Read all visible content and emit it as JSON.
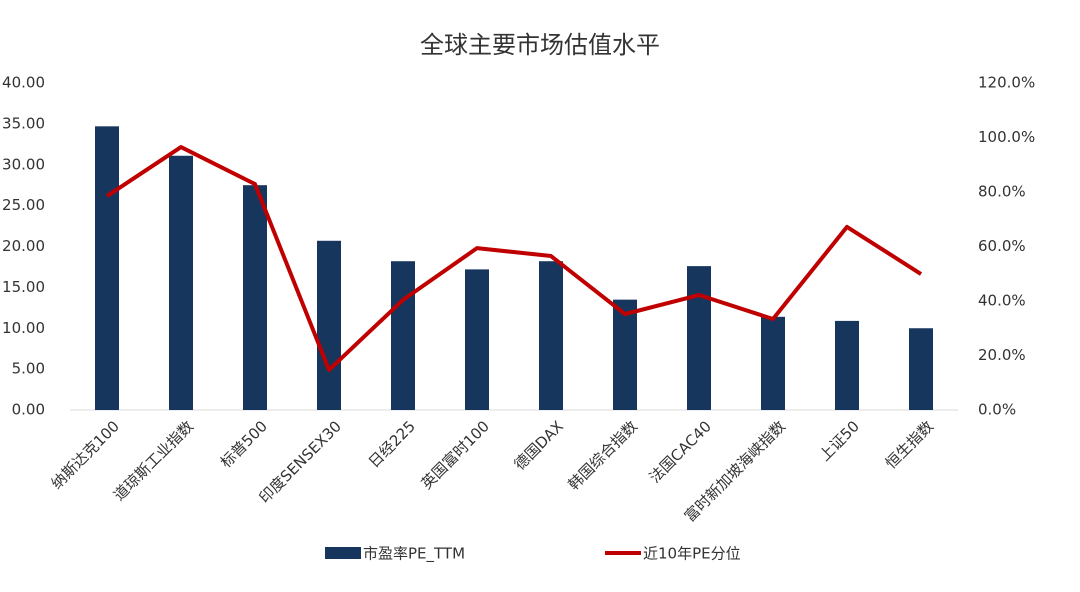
{
  "chart_data": {
    "type": "bar_line",
    "title": "全球主要市场估值水平",
    "categories": [
      "纳斯达克100",
      "道琼斯工业指数",
      "标普500",
      "印度SENSEX30",
      "日经225",
      "英国富时100",
      "德国DAX",
      "韩国综合指数",
      "法国CAC40",
      "富时新加坡海峡指数",
      "上证50",
      "恒生指数"
    ],
    "series": [
      {
        "name": "市盈率PE_TTM",
        "color": "#17365d",
        "type": "bar",
        "values": [
          34.7,
          31.1,
          27.5,
          20.7,
          18.2,
          17.2,
          18.2,
          13.5,
          17.6,
          11.4,
          10.9,
          10.0
        ]
      },
      {
        "name": "近10年PE分位",
        "color": "#c00000",
        "type": "line",
        "axis": "y2",
        "values": [
          78.5,
          96.5,
          82.9,
          14.7,
          40.4,
          59.4,
          56.5,
          35.2,
          42.2,
          33.4,
          67.2,
          49.9
        ]
      }
    ],
    "ylim": [
      0,
      40
    ],
    "yticks": [
      {
        "value": 0,
        "label": "0.00"
      },
      {
        "value": 5,
        "label": "5.00"
      },
      {
        "value": 10,
        "label": "10.00"
      },
      {
        "value": 15,
        "label": "15.00"
      },
      {
        "value": 20,
        "label": "20.00"
      },
      {
        "value": 25,
        "label": "25.00"
      },
      {
        "value": 30,
        "label": "30.00"
      },
      {
        "value": 35,
        "label": "35.00"
      },
      {
        "value": 40,
        "label": "40.00"
      }
    ],
    "y2lim": [
      0,
      120
    ],
    "y2ticks": [
      {
        "value": 0,
        "label": "0.0%"
      },
      {
        "value": 20,
        "label": "20.0%"
      },
      {
        "value": 40,
        "label": "40.0%"
      },
      {
        "value": 60,
        "label": "60.0%"
      },
      {
        "value": 80,
        "label": "80.0%"
      },
      {
        "value": 100,
        "label": "100.0%"
      },
      {
        "value": 120,
        "label": "120.0%"
      }
    ],
    "legend": "bottom"
  }
}
